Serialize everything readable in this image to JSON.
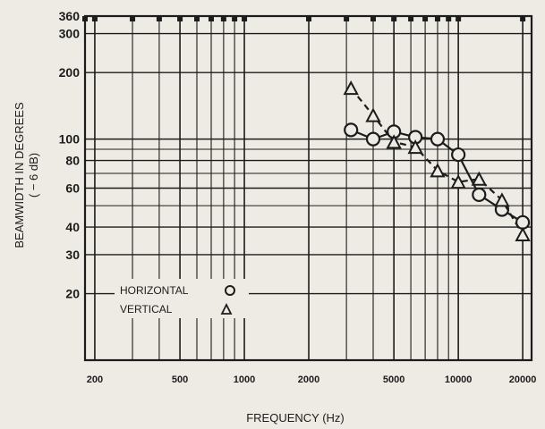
{
  "chart_data": {
    "type": "line",
    "xlabel": "FREQUENCY (Hz)",
    "ylabel": "BEAMWIDTH IN DEGREES",
    "ylabel_sub": "( − 6 dB)",
    "x_scale": "log",
    "y_scale": "log",
    "xlim": [
      180,
      22000
    ],
    "ylim": [
      10,
      360
    ],
    "grid": true,
    "x_ticks": [
      {
        "value": 200,
        "label": "200"
      },
      {
        "value": 500,
        "label": "500"
      },
      {
        "value": 1000,
        "label": "1000"
      },
      {
        "value": 2000,
        "label": "2000"
      },
      {
        "value": 5000,
        "label": "5000"
      },
      {
        "value": 10000,
        "label": "10000"
      },
      {
        "value": 20000,
        "label": "20000"
      }
    ],
    "y_ticks": [
      {
        "value": 20,
        "label": "20"
      },
      {
        "value": 30,
        "label": "30"
      },
      {
        "value": 40,
        "label": "40"
      },
      {
        "value": 60,
        "label": "60"
      },
      {
        "value": 80,
        "label": "80"
      },
      {
        "value": 100,
        "label": "100"
      },
      {
        "value": 200,
        "label": "200"
      },
      {
        "value": 300,
        "label": "300"
      },
      {
        "value": 360,
        "label": "360"
      }
    ],
    "series": [
      {
        "name": "HORIZONTAL",
        "marker": "circle",
        "line": "solid",
        "x": [
          3150,
          4000,
          5000,
          6300,
          8000,
          10000,
          12500,
          16000,
          20000
        ],
        "y": [
          110,
          100,
          108,
          102,
          100,
          85,
          56,
          48,
          42
        ]
      },
      {
        "name": "VERTICAL",
        "marker": "triangle",
        "line": "dashed",
        "x": [
          3150,
          4000,
          5000,
          6300,
          8000,
          10000,
          12500,
          16000,
          20000
        ],
        "y": [
          170,
          128,
          97,
          92,
          72,
          64,
          66,
          53,
          37
        ]
      }
    ],
    "legend": {
      "placement": "lower-left",
      "entries": [
        {
          "label": "HORIZONTAL",
          "symbol": "O"
        },
        {
          "label": "VERTICAL",
          "symbol": "△"
        }
      ]
    }
  },
  "colors": {
    "ink": "#1c1c1c",
    "paper": "#eeebe4",
    "grid": "#2a2a2a"
  }
}
